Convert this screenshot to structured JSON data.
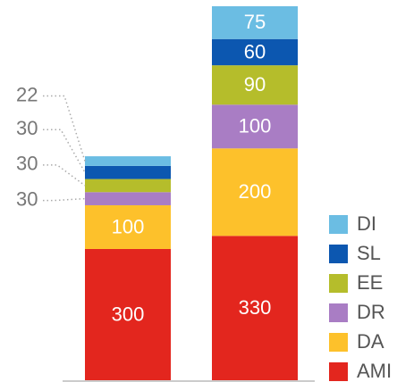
{
  "chart_data": {
    "type": "stacked_bar",
    "series": [
      {
        "name": "AMI",
        "color": "#e3261e",
        "values": [
          300,
          330
        ]
      },
      {
        "name": "DA",
        "color": "#fdc12b",
        "values": [
          100,
          200
        ]
      },
      {
        "name": "DR",
        "color": "#a97dc4",
        "values": [
          30,
          100
        ]
      },
      {
        "name": "EE",
        "color": "#b5bd2b",
        "values": [
          30,
          90
        ]
      },
      {
        "name": "SL",
        "color": "#0c57b0",
        "values": [
          30,
          60
        ]
      },
      {
        "name": "DI",
        "color": "#6bbde3",
        "values": [
          22,
          75
        ]
      }
    ]
  }
}
